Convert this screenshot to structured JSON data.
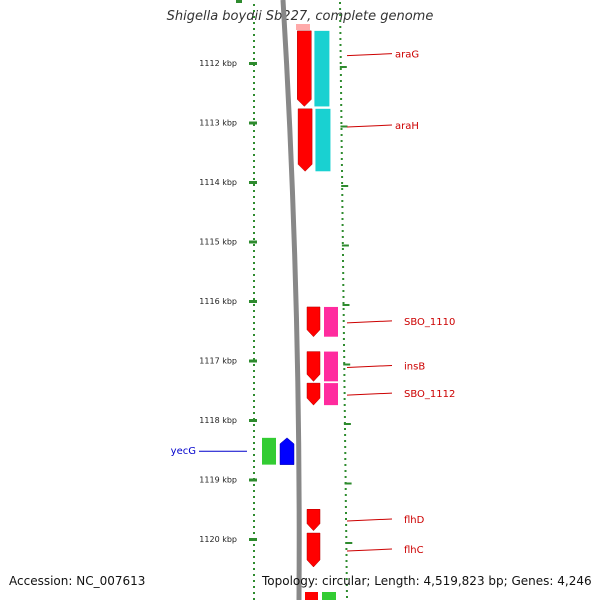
{
  "title": "Shigella boydii Sb227, complete genome",
  "colors": {
    "backbone": "#888888",
    "tick": "#2e8b2e",
    "forward_label": "#cc0000",
    "reverse_label": "#0000cc"
  },
  "ticks": [
    {
      "kbp": 1112,
      "label": "1112 kbp"
    },
    {
      "kbp": 1113,
      "label": "1113 kbp"
    },
    {
      "kbp": 1114,
      "label": "1114 kbp"
    },
    {
      "kbp": 1115,
      "label": "1115 kbp"
    },
    {
      "kbp": 1116,
      "label": "1116 kbp"
    },
    {
      "kbp": 1117,
      "label": "1117 kbp"
    },
    {
      "kbp": 1118,
      "label": "1118 kbp"
    },
    {
      "kbp": 1119,
      "label": "1119 kbp"
    },
    {
      "kbp": 1120,
      "label": "1120 kbp"
    }
  ],
  "genes": [
    {
      "name": "araG",
      "strand": "forward",
      "start_kbp": 1111.46,
      "end_kbp": 1112.73,
      "color": "#ff0000",
      "feature_color": "#00cccc"
    },
    {
      "name": "araH",
      "strand": "forward",
      "start_kbp": 1112.77,
      "end_kbp": 1113.82,
      "color": "#ff0000",
      "feature_color": "#00cccc"
    },
    {
      "name": "SBO_1110",
      "strand": "forward",
      "start_kbp": 1116.1,
      "end_kbp": 1116.6,
      "color": "#ff0000",
      "feature_color": "#ff1493"
    },
    {
      "name": "insB",
      "strand": "forward",
      "start_kbp": 1116.85,
      "end_kbp": 1117.35,
      "color": "#ff0000",
      "feature_color": "#ff1493"
    },
    {
      "name": "SBO_1112",
      "strand": "forward",
      "start_kbp": 1117.38,
      "end_kbp": 1117.75,
      "color": "#ff0000",
      "feature_color": "#ff1493"
    },
    {
      "name": "yecG",
      "strand": "reverse",
      "start_kbp": 1118.3,
      "end_kbp": 1118.75,
      "color": "#0000ff",
      "feature_color": "#33cc33"
    },
    {
      "name": "flhD",
      "strand": "forward",
      "start_kbp": 1119.5,
      "end_kbp": 1119.86,
      "color": "#ff0000",
      "feature_color": null
    },
    {
      "name": "flhC",
      "strand": "forward",
      "start_kbp": 1119.9,
      "end_kbp": 1120.47,
      "color": "#ff0000",
      "feature_color": null
    }
  ],
  "footer": {
    "accession": "Accession: NC_007613",
    "info": "Topology: circular; Length: 4,519,823 bp; Genes: 4,246"
  }
}
